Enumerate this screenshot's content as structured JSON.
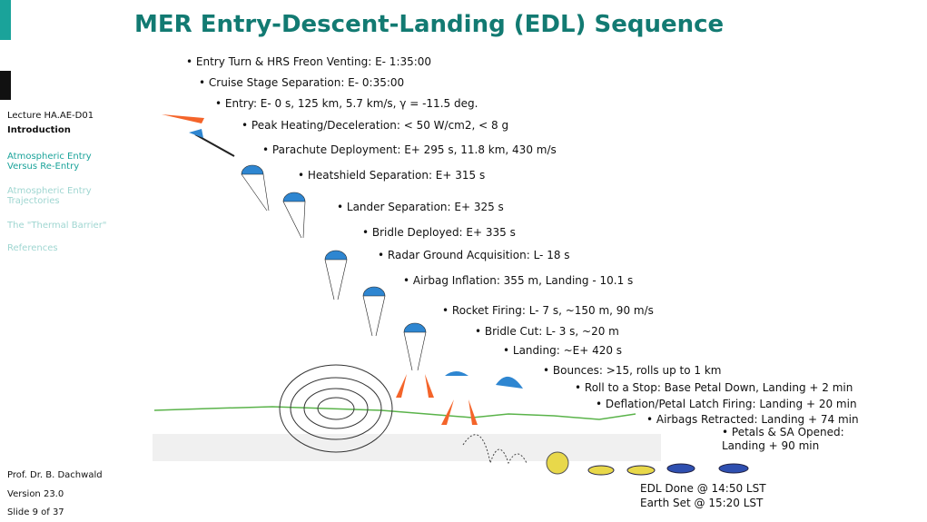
{
  "sidebar": {
    "lecture": "Lecture HA.AE-D01",
    "section": "Introduction",
    "nav": [
      "Atmospheric Entry Versus Re-Entry",
      "Atmospheric Entry Trajectories",
      "The \"Thermal Barrier\"",
      "References"
    ],
    "footer": [
      "Prof. Dr. B. Dachwald",
      "Version 23.0",
      "Slide 9 of 37"
    ]
  },
  "header": {
    "title": "MER Entry-Descent-Landing (EDL) Sequence"
  },
  "steps": [
    "• Entry Turn & HRS Freon Venting: E- 1:35:00",
    "• Cruise Stage Separation: E- 0:35:00",
    "• Entry: E- 0 s, 125 km, 5.7 km/s, γ = -11.5 deg.",
    "• Peak Heating/Deceleration: < 50 W/cm2, < 8 g",
    "• Parachute Deployment: E+ 295 s, 11.8 km, 430 m/s",
    "• Heatshield Separation: E+ 315 s",
    "• Lander Separation: E+ 325 s",
    "• Bridle Deployed: E+ 335 s",
    "• Radar Ground Acquisition: L- 18 s",
    "• Airbag Inflation: 355 m, Landing - 10.1 s",
    "• Rocket Firing: L- 7 s, ~150 m, 90 m/s",
    "• Bridle Cut: L- 3 s, ~20 m",
    "• Landing: ~E+ 420 s",
    "• Bounces: >15, rolls up to 1 km",
    "• Roll to a Stop: Base Petal Down, Landing + 2 min",
    "• Deflation/Petal Latch Firing: Landing + 20 min",
    "• Airbags Retracted: Landing + 74 min"
  ],
  "final_step": [
    "• Petals & SA Opened:",
    "Landing + 90 min"
  ],
  "closing": [
    "EDL Done @ 14:50 LST",
    "Earth Set @ 15:20 LST"
  ]
}
